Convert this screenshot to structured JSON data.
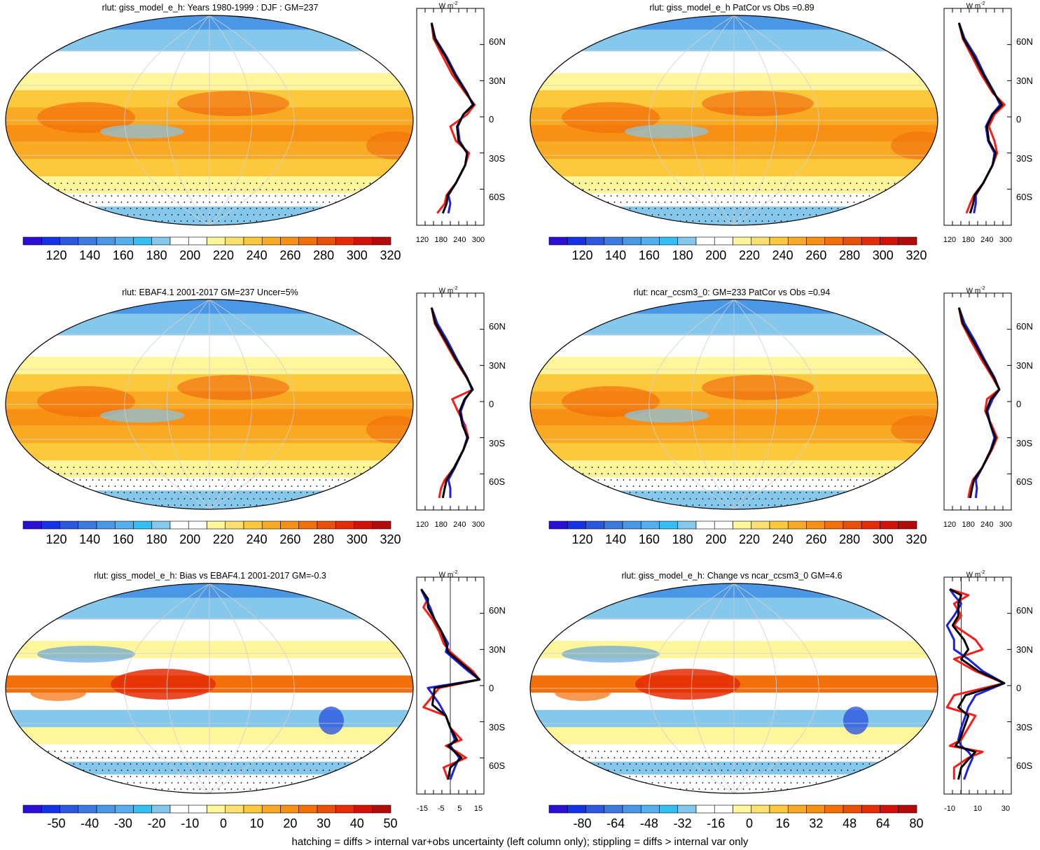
{
  "footer": "hatching = diffs > internal var+obs uncertainty (left column only); stippling = diffs > internal var only",
  "colors": {
    "absolute_scale": [
      "#2a0fd6",
      "#1632e8",
      "#2c57e0",
      "#3d7ae0",
      "#4a97e6",
      "#55afee",
      "#33bff2",
      "#85c8ec",
      "#ffffff",
      "#ffffff",
      "#fff59a",
      "#fde070",
      "#fcc83c",
      "#f8ab22",
      "#f79013",
      "#f26f0a",
      "#ec4f07",
      "#e62b06",
      "#d41008",
      "#b50a0a"
    ],
    "anomaly_scale": [
      "#2a0fd6",
      "#1632e8",
      "#2c57e0",
      "#3d7ae0",
      "#4a97e6",
      "#55afee",
      "#33bff2",
      "#85c8ec",
      "#ffffff",
      "#ffffff",
      "#fff59a",
      "#fde070",
      "#fcc83c",
      "#f8ab22",
      "#f79013",
      "#f26f0a",
      "#ec4f07",
      "#e62b06",
      "#d41008",
      "#b50a0a"
    ],
    "profile_model": "#ff1a1a",
    "profile_obs": "#1f1fe0",
    "profile_mean": "#000000"
  },
  "panels": [
    {
      "title": "rlut: giss_model_e_h: Years 1980-1999 : DJF : GM=237",
      "kind": "absolute",
      "colorbar_labels": [
        "120",
        "140",
        "160",
        "180",
        "200",
        "220",
        "240",
        "260",
        "280",
        "300",
        "320"
      ],
      "profile_ticks": [
        "120",
        "180",
        "240",
        "300"
      ],
      "profile_unit": "W m",
      "profile_unit_sup": "-2",
      "lat_labels": [
        "60N",
        "30N",
        "0",
        "30S",
        "60S"
      ]
    },
    {
      "title": "rlut: giss_model_e_h PatCor vs Obs =0.89",
      "kind": "absolute",
      "colorbar_labels": [
        "120",
        "140",
        "160",
        "180",
        "200",
        "220",
        "240",
        "260",
        "280",
        "300",
        "320"
      ],
      "profile_ticks": [
        "120",
        "180",
        "240",
        "300"
      ],
      "profile_unit": "W m",
      "profile_unit_sup": "-2",
      "lat_labels": [
        "60N",
        "30N",
        "0",
        "30S",
        "60S"
      ]
    },
    {
      "title": "rlut: EBAF4.1 2001-2017 GM=237 Uncer=5%",
      "kind": "absolute",
      "colorbar_labels": [
        "120",
        "140",
        "160",
        "180",
        "200",
        "220",
        "240",
        "260",
        "280",
        "300",
        "320"
      ],
      "profile_ticks": [
        "120",
        "180",
        "240",
        "300"
      ],
      "profile_unit": "W m",
      "profile_unit_sup": "-2",
      "lat_labels": [
        "60N",
        "30N",
        "0",
        "30S",
        "60S"
      ]
    },
    {
      "title": "rlut: ncar_ccsm3_0: GM=233 PatCor vs Obs =0.94",
      "kind": "absolute",
      "colorbar_labels": [
        "120",
        "140",
        "160",
        "180",
        "200",
        "220",
        "240",
        "260",
        "280",
        "300",
        "320"
      ],
      "profile_ticks": [
        "120",
        "180",
        "240",
        "300"
      ],
      "profile_unit": "W m",
      "profile_unit_sup": "-2",
      "lat_labels": [
        "60N",
        "30N",
        "0",
        "30S",
        "60S"
      ]
    },
    {
      "title": "rlut: giss_model_e_h: Bias vs EBAF4.1 2001-2017 GM=-0.3",
      "kind": "anomaly",
      "colorbar_labels": [
        "-50",
        "-40",
        "-30",
        "-20",
        "-10",
        "0",
        "10",
        "20",
        "30",
        "40",
        "50"
      ],
      "profile_ticks": [
        "-15",
        "-5",
        "5",
        "15"
      ],
      "profile_unit": "W m",
      "profile_unit_sup": "-2",
      "lat_labels": [
        "60N",
        "30N",
        "0",
        "30S",
        "60S"
      ]
    },
    {
      "title": "rlut: giss_model_e_h: Change vs ncar_ccsm3_0 GM=4.6",
      "kind": "anomaly",
      "colorbar_labels": [
        "-80",
        "-64",
        "-48",
        "-32",
        "-16",
        "0",
        "16",
        "32",
        "48",
        "64",
        "80"
      ],
      "profile_ticks": [
        "-10",
        "10",
        "30"
      ],
      "profile_unit": "W m",
      "profile_unit_sup": "-2",
      "lat_labels": [
        "60N",
        "30N",
        "0",
        "30S",
        "60S"
      ]
    }
  ],
  "chart_data": [
    {
      "type": "line",
      "title": "rlut: giss_model_e_h: Years 1980-1999 : DJF : GM=237",
      "xlim": [
        120,
        300
      ],
      "ylim": [
        -90,
        90
      ],
      "series": [
        {
          "color": "red",
          "x": [
            160,
            165,
            190,
            215,
            250,
            275,
            255,
            210,
            225,
            260,
            250,
            225,
            200,
            195,
            175
          ],
          "y": [
            78,
            65,
            50,
            35,
            20,
            10,
            2,
            -8,
            -20,
            -30,
            -40,
            -55,
            -65,
            -72,
            -80
          ]
        },
        {
          "color": "blue",
          "x": [
            160,
            170,
            200,
            225,
            255,
            270,
            245,
            230,
            235,
            255,
            250,
            225,
            205,
            210,
            205
          ],
          "y": [
            78,
            65,
            50,
            35,
            20,
            10,
            2,
            -8,
            -20,
            -30,
            -40,
            -55,
            -65,
            -72,
            -80
          ]
        },
        {
          "color": "black",
          "x": [
            160,
            168,
            197,
            222,
            253,
            272,
            245,
            228,
            232,
            255,
            250,
            225,
            203,
            200,
            190
          ],
          "y": [
            78,
            65,
            50,
            35,
            20,
            10,
            2,
            -8,
            -20,
            -30,
            -40,
            -55,
            -65,
            -72,
            -80
          ]
        }
      ]
    },
    {
      "type": "line",
      "title": "rlut: giss_model_e_h PatCor vs Obs =0.89",
      "xlim": [
        120,
        300
      ],
      "ylim": [
        -90,
        90
      ],
      "series": [
        {
          "color": "red",
          "x": [
            160,
            170,
            195,
            220,
            250,
            282,
            255,
            240,
            255,
            262,
            250,
            225,
            200,
            190,
            180
          ],
          "y": [
            78,
            65,
            50,
            35,
            20,
            10,
            2,
            -8,
            -20,
            -30,
            -40,
            -55,
            -65,
            -72,
            -80
          ]
        },
        {
          "color": "blue",
          "x": [
            160,
            175,
            205,
            228,
            255,
            270,
            248,
            232,
            238,
            255,
            250,
            225,
            205,
            205,
            200
          ],
          "y": [
            78,
            65,
            50,
            35,
            20,
            10,
            2,
            -8,
            -20,
            -30,
            -40,
            -55,
            -65,
            -72,
            -80
          ]
        },
        {
          "color": "black",
          "x": [
            160,
            172,
            200,
            225,
            253,
            275,
            250,
            235,
            240,
            258,
            250,
            225,
            202,
            198,
            190
          ],
          "y": [
            78,
            65,
            50,
            35,
            20,
            10,
            2,
            -8,
            -20,
            -30,
            -40,
            -55,
            -65,
            -72,
            -80
          ]
        }
      ]
    },
    {
      "type": "line",
      "title": "rlut: EBAF4.1 2001-2017 GM=237 Uncer=5%",
      "xlim": [
        120,
        300
      ],
      "ylim": [
        -90,
        90
      ],
      "series": [
        {
          "color": "red",
          "x": [
            160,
            168,
            195,
            222,
            253,
            270,
            215,
            230,
            250,
            258,
            245,
            220,
            195,
            185,
            180
          ],
          "y": [
            78,
            65,
            50,
            35,
            20,
            10,
            2,
            -8,
            -20,
            -30,
            -40,
            -55,
            -65,
            -72,
            -80
          ]
        },
        {
          "color": "blue",
          "x": [
            160,
            175,
            203,
            228,
            255,
            268,
            250,
            238,
            245,
            255,
            245,
            222,
            205,
            210,
            210
          ],
          "y": [
            78,
            65,
            50,
            35,
            20,
            10,
            2,
            -8,
            -20,
            -30,
            -40,
            -55,
            -65,
            -72,
            -80
          ]
        },
        {
          "color": "black",
          "x": [
            160,
            170,
            198,
            225,
            254,
            270,
            248,
            235,
            243,
            257,
            245,
            220,
            200,
            195,
            190
          ],
          "y": [
            78,
            65,
            50,
            35,
            20,
            10,
            2,
            -8,
            -20,
            -30,
            -40,
            -55,
            -65,
            -72,
            -80
          ]
        }
      ]
    },
    {
      "type": "line",
      "title": "rlut: ncar_ccsm3_0: GM=233 PatCor vs Obs =0.94",
      "xlim": [
        120,
        300
      ],
      "ylim": [
        -90,
        90
      ],
      "series": [
        {
          "color": "red",
          "x": [
            160,
            168,
            193,
            220,
            250,
            268,
            235,
            230,
            248,
            262,
            248,
            222,
            197,
            190,
            185
          ],
          "y": [
            78,
            65,
            50,
            35,
            20,
            10,
            2,
            -8,
            -20,
            -30,
            -40,
            -55,
            -65,
            -72,
            -80
          ]
        },
        {
          "color": "blue",
          "x": [
            160,
            175,
            203,
            228,
            255,
            268,
            250,
            236,
            245,
            255,
            245,
            222,
            205,
            208,
            205
          ],
          "y": [
            78,
            65,
            50,
            35,
            20,
            10,
            2,
            -8,
            -20,
            -30,
            -40,
            -55,
            -65,
            -72,
            -80
          ]
        },
        {
          "color": "black",
          "x": [
            160,
            170,
            198,
            225,
            253,
            268,
            245,
            233,
            245,
            258,
            246,
            222,
            200,
            195,
            190
          ],
          "y": [
            78,
            65,
            50,
            35,
            20,
            10,
            2,
            -8,
            -20,
            -30,
            -40,
            -55,
            -65,
            -72,
            -80
          ]
        }
      ]
    },
    {
      "type": "line",
      "title": "rlut: giss_model_e_h: Bias vs EBAF4.1 2001-2017 GM=-0.3",
      "xlim": [
        -15,
        15
      ],
      "ylim": [
        -90,
        90
      ],
      "series": [
        {
          "color": "red",
          "x": [
            -13,
            -10,
            -12,
            -8,
            -5,
            -3,
            0,
            5,
            10,
            13,
            -5,
            -12,
            -2,
            0,
            5,
            -2,
            3,
            7,
            -3,
            -1
          ],
          "y": [
            80,
            72,
            65,
            55,
            45,
            35,
            28,
            20,
            12,
            5,
            -2,
            -18,
            -25,
            -35,
            -45,
            -50,
            -55,
            -60,
            -68,
            -78
          ]
        },
        {
          "color": "blue",
          "x": [
            -13,
            -11,
            -9,
            -7,
            -4,
            -1,
            -2,
            3,
            8,
            13,
            -10,
            -5,
            -2,
            0,
            2,
            0,
            2,
            4,
            2,
            0
          ],
          "y": [
            80,
            72,
            65,
            55,
            45,
            35,
            28,
            20,
            12,
            5,
            -2,
            -15,
            -25,
            -35,
            -45,
            -50,
            -55,
            -60,
            -68,
            -78
          ]
        },
        {
          "color": "black",
          "x": [
            -13,
            -10,
            -10,
            -7,
            -4,
            -2,
            -1,
            4,
            9,
            13,
            -7,
            -8,
            -2,
            0,
            3,
            -1,
            2,
            5,
            0,
            -1
          ],
          "y": [
            80,
            72,
            65,
            55,
            45,
            35,
            28,
            20,
            12,
            5,
            -2,
            -16,
            -25,
            -35,
            -45,
            -50,
            -55,
            -60,
            -68,
            -78
          ]
        }
      ]
    },
    {
      "type": "line",
      "title": "rlut: giss_model_e_h: Change vs ncar_ccsm3_0 GM=4.6",
      "xlim": [
        -12,
        35
      ],
      "ylim": [
        -90,
        90
      ],
      "series": [
        {
          "color": "red",
          "x": [
            -8,
            5,
            -5,
            0,
            -5,
            10,
            15,
            -5,
            10,
            30,
            -5,
            -10,
            10,
            5,
            0,
            -8,
            15,
            5,
            -5,
            -5
          ],
          "y": [
            80,
            75,
            68,
            58,
            50,
            38,
            30,
            22,
            12,
            2,
            -8,
            -18,
            -25,
            -35,
            -45,
            -50,
            -55,
            -60,
            -68,
            -78
          ]
        },
        {
          "color": "blue",
          "x": [
            -8,
            -5,
            0,
            -5,
            -10,
            -5,
            -5,
            5,
            15,
            30,
            10,
            5,
            3,
            0,
            -2,
            0,
            5,
            8,
            5,
            2
          ],
          "y": [
            80,
            75,
            68,
            58,
            50,
            38,
            30,
            22,
            12,
            2,
            -8,
            -18,
            -25,
            -35,
            -45,
            -50,
            -55,
            -60,
            -68,
            -78
          ]
        },
        {
          "color": "black",
          "x": [
            -8,
            0,
            -2,
            -2,
            -6,
            2,
            5,
            0,
            12,
            30,
            3,
            -2,
            5,
            2,
            -1,
            -4,
            10,
            6,
            0,
            -2
          ],
          "y": [
            80,
            75,
            68,
            58,
            50,
            38,
            30,
            22,
            12,
            2,
            -8,
            -18,
            -25,
            -35,
            -45,
            -50,
            -55,
            -60,
            -68,
            -78
          ]
        }
      ]
    }
  ]
}
